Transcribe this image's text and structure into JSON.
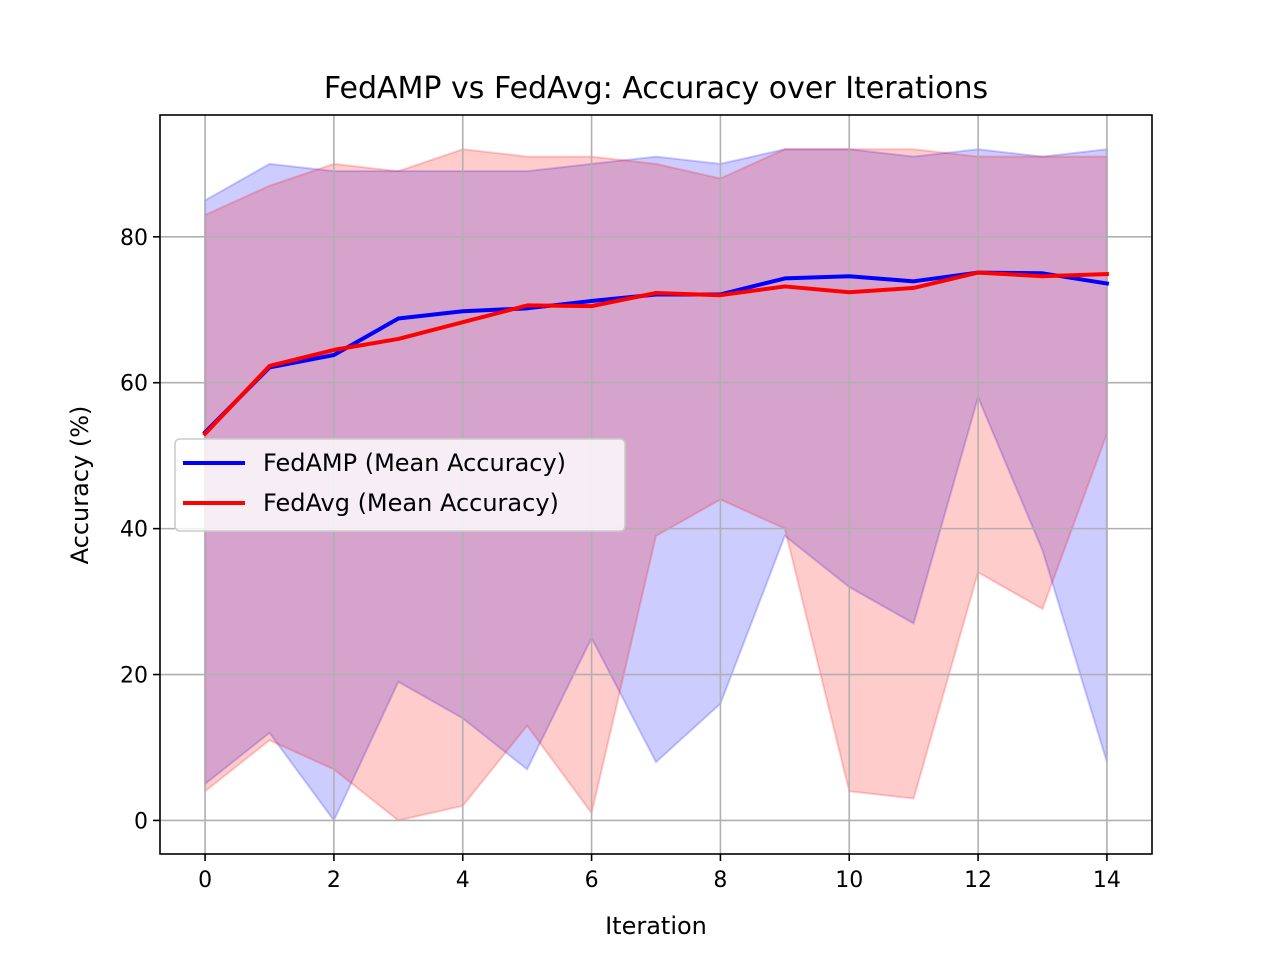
{
  "chart_data": {
    "type": "line",
    "title": "FedAMP vs FedAvg: Accuracy over Iterations",
    "xlabel": "Iteration",
    "ylabel": "Accuracy (%)",
    "xlim": [
      -0.7,
      14.7
    ],
    "ylim": [
      -4.6,
      96.7
    ],
    "x_ticks": [
      0,
      2,
      4,
      6,
      8,
      10,
      12,
      14
    ],
    "y_ticks": [
      0,
      20,
      40,
      60,
      80
    ],
    "grid": true,
    "legend_position": "center-left",
    "x": [
      0,
      1,
      2,
      3,
      4,
      5,
      6,
      7,
      8,
      9,
      10,
      11,
      12,
      13,
      14
    ],
    "series": [
      {
        "name": "FedAMP (Mean Accuracy)",
        "color": "#0000ff",
        "values": [
          53.2,
          62.1,
          63.8,
          68.8,
          69.8,
          70.2,
          71.2,
          72.1,
          72.1,
          74.3,
          74.6,
          73.9,
          75.1,
          75.0,
          73.6
        ],
        "band_min": [
          5,
          12,
          0,
          19,
          14,
          7,
          25,
          8,
          16,
          39,
          32,
          27,
          58,
          37,
          8
        ],
        "band_max": [
          85,
          90,
          89,
          89,
          89,
          89,
          90,
          91,
          90,
          92,
          92,
          91,
          92,
          91,
          92
        ],
        "band_color": "#0000ff",
        "band_opacity": 0.2
      },
      {
        "name": "FedAvg (Mean Accuracy)",
        "color": "#ff0000",
        "values": [
          53.0,
          62.3,
          64.5,
          66.0,
          68.3,
          70.6,
          70.5,
          72.3,
          72.0,
          73.2,
          72.4,
          73.0,
          75.1,
          74.6,
          74.9
        ],
        "band_min": [
          4,
          11,
          7,
          0,
          2,
          13,
          1,
          39,
          44,
          40,
          4,
          3,
          34,
          29,
          53
        ],
        "band_max": [
          83,
          87,
          90,
          89,
          92,
          91,
          91,
          90,
          88,
          92,
          92,
          92,
          91,
          91,
          91
        ],
        "band_color": "#ff0000",
        "band_opacity": 0.2
      }
    ]
  }
}
